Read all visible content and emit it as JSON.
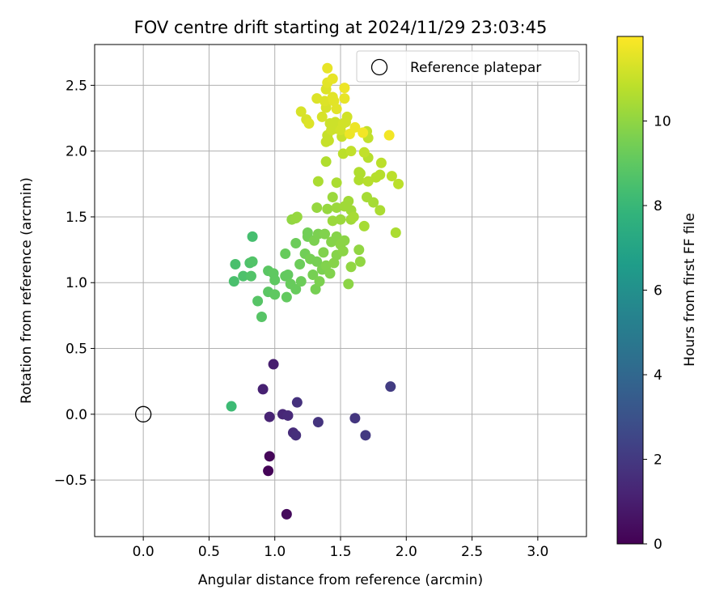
{
  "chart_data": {
    "type": "scatter",
    "title": "FOV centre drift starting at 2024/11/29 23:03:45",
    "xlabel": "Angular distance from reference (arcmin)",
    "ylabel": "Rotation from reference (arcmin)",
    "xlim": [
      -0.37,
      3.37
    ],
    "ylim": [
      -0.93,
      2.81
    ],
    "xticks": [
      "0.0",
      "0.5",
      "1.0",
      "1.5",
      "2.0",
      "2.5",
      "3.0"
    ],
    "xtick_values": [
      0.0,
      0.5,
      1.0,
      1.5,
      2.0,
      2.5,
      3.0
    ],
    "yticks": [
      "−0.5",
      "0.0",
      "0.5",
      "1.0",
      "1.5",
      "2.0",
      "2.5"
    ],
    "ytick_values": [
      -0.5,
      0.0,
      0.5,
      1.0,
      1.5,
      2.0,
      2.5
    ],
    "grid": true,
    "legend": {
      "placement": "top-right",
      "entry": "Reference platepar"
    },
    "reference_point": {
      "x": 0.0,
      "y": 0.0
    },
    "colorbar": {
      "label": "Hours from first FF file",
      "range": [
        0,
        12
      ],
      "ticks": [
        "0",
        "2",
        "4",
        "6",
        "8",
        "10"
      ],
      "tick_values": [
        0,
        2,
        4,
        6,
        8,
        10
      ],
      "colormap": "viridis"
    },
    "points": [
      {
        "x": 0.95,
        "y": -0.43,
        "h": 0.1
      },
      {
        "x": 0.96,
        "y": -0.32,
        "h": 0.2
      },
      {
        "x": 1.09,
        "y": -0.76,
        "h": 0.3
      },
      {
        "x": 0.99,
        "y": 0.38,
        "h": 1.0
      },
      {
        "x": 0.91,
        "y": 0.19,
        "h": 1.1
      },
      {
        "x": 0.96,
        "y": -0.02,
        "h": 1.2
      },
      {
        "x": 1.06,
        "y": 0.0,
        "h": 1.3
      },
      {
        "x": 1.1,
        "y": -0.01,
        "h": 1.4
      },
      {
        "x": 1.14,
        "y": -0.14,
        "h": 1.5
      },
      {
        "x": 1.16,
        "y": -0.16,
        "h": 1.6
      },
      {
        "x": 1.17,
        "y": 0.09,
        "h": 1.7
      },
      {
        "x": 1.33,
        "y": -0.06,
        "h": 1.8
      },
      {
        "x": 1.61,
        "y": -0.03,
        "h": 1.9
      },
      {
        "x": 1.69,
        "y": -0.16,
        "h": 2.0
      },
      {
        "x": 1.88,
        "y": 0.21,
        "h": 2.1
      },
      {
        "x": 0.67,
        "y": 0.06,
        "h": 8.2
      },
      {
        "x": 0.83,
        "y": 1.35,
        "h": 8.4
      },
      {
        "x": 0.7,
        "y": 1.14,
        "h": 8.5
      },
      {
        "x": 0.69,
        "y": 1.01,
        "h": 8.5
      },
      {
        "x": 0.76,
        "y": 1.05,
        "h": 8.6
      },
      {
        "x": 0.81,
        "y": 1.15,
        "h": 8.6
      },
      {
        "x": 0.83,
        "y": 1.16,
        "h": 8.7
      },
      {
        "x": 0.82,
        "y": 1.05,
        "h": 8.7
      },
      {
        "x": 0.87,
        "y": 0.86,
        "h": 8.8
      },
      {
        "x": 0.9,
        "y": 0.74,
        "h": 8.8
      },
      {
        "x": 0.95,
        "y": 0.93,
        "h": 8.9
      },
      {
        "x": 0.95,
        "y": 1.09,
        "h": 8.9
      },
      {
        "x": 0.99,
        "y": 1.07,
        "h": 9.0
      },
      {
        "x": 1.0,
        "y": 1.02,
        "h": 9.0
      },
      {
        "x": 1.0,
        "y": 0.91,
        "h": 9.0
      },
      {
        "x": 1.08,
        "y": 1.05,
        "h": 9.1
      },
      {
        "x": 1.1,
        "y": 1.06,
        "h": 9.1
      },
      {
        "x": 1.09,
        "y": 0.89,
        "h": 9.1
      },
      {
        "x": 1.12,
        "y": 0.99,
        "h": 9.2
      },
      {
        "x": 1.16,
        "y": 0.95,
        "h": 9.2
      },
      {
        "x": 1.08,
        "y": 1.22,
        "h": 9.2
      },
      {
        "x": 1.16,
        "y": 1.3,
        "h": 9.3
      },
      {
        "x": 1.19,
        "y": 1.14,
        "h": 9.3
      },
      {
        "x": 1.2,
        "y": 1.01,
        "h": 9.3
      },
      {
        "x": 1.23,
        "y": 1.22,
        "h": 9.4
      },
      {
        "x": 1.25,
        "y": 1.35,
        "h": 9.4
      },
      {
        "x": 1.25,
        "y": 1.38,
        "h": 9.4
      },
      {
        "x": 1.27,
        "y": 1.18,
        "h": 9.5
      },
      {
        "x": 1.29,
        "y": 1.06,
        "h": 9.5
      },
      {
        "x": 1.31,
        "y": 0.95,
        "h": 9.5
      },
      {
        "x": 1.32,
        "y": 1.16,
        "h": 9.5
      },
      {
        "x": 1.3,
        "y": 1.32,
        "h": 9.6
      },
      {
        "x": 1.33,
        "y": 1.37,
        "h": 9.6
      },
      {
        "x": 1.34,
        "y": 1.01,
        "h": 9.6
      },
      {
        "x": 1.36,
        "y": 1.1,
        "h": 9.6
      },
      {
        "x": 1.37,
        "y": 1.23,
        "h": 9.7
      },
      {
        "x": 1.38,
        "y": 1.37,
        "h": 9.7
      },
      {
        "x": 1.39,
        "y": 1.13,
        "h": 9.7
      },
      {
        "x": 1.42,
        "y": 1.07,
        "h": 9.7
      },
      {
        "x": 1.43,
        "y": 1.31,
        "h": 9.8
      },
      {
        "x": 1.45,
        "y": 1.15,
        "h": 9.8
      },
      {
        "x": 1.47,
        "y": 1.21,
        "h": 9.8
      },
      {
        "x": 1.47,
        "y": 1.35,
        "h": 9.8
      },
      {
        "x": 1.5,
        "y": 1.29,
        "h": 9.9
      },
      {
        "x": 1.52,
        "y": 1.24,
        "h": 9.9
      },
      {
        "x": 1.53,
        "y": 1.32,
        "h": 9.9
      },
      {
        "x": 1.56,
        "y": 0.99,
        "h": 9.9
      },
      {
        "x": 1.58,
        "y": 1.12,
        "h": 10.0
      },
      {
        "x": 1.65,
        "y": 1.16,
        "h": 10.0
      },
      {
        "x": 1.64,
        "y": 1.25,
        "h": 10.0
      },
      {
        "x": 1.13,
        "y": 1.48,
        "h": 10.0
      },
      {
        "x": 1.16,
        "y": 1.49,
        "h": 10.1
      },
      {
        "x": 1.17,
        "y": 1.5,
        "h": 10.1
      },
      {
        "x": 1.32,
        "y": 1.57,
        "h": 10.1
      },
      {
        "x": 1.4,
        "y": 1.56,
        "h": 10.1
      },
      {
        "x": 1.44,
        "y": 1.47,
        "h": 10.2
      },
      {
        "x": 1.47,
        "y": 1.57,
        "h": 10.2
      },
      {
        "x": 1.44,
        "y": 1.65,
        "h": 10.2
      },
      {
        "x": 1.5,
        "y": 1.48,
        "h": 10.2
      },
      {
        "x": 1.53,
        "y": 1.58,
        "h": 10.3
      },
      {
        "x": 1.56,
        "y": 1.62,
        "h": 10.3
      },
      {
        "x": 1.58,
        "y": 1.48,
        "h": 10.3
      },
      {
        "x": 1.58,
        "y": 1.55,
        "h": 10.3
      },
      {
        "x": 1.6,
        "y": 1.5,
        "h": 10.4
      },
      {
        "x": 1.68,
        "y": 1.43,
        "h": 10.4
      },
      {
        "x": 1.7,
        "y": 1.65,
        "h": 10.4
      },
      {
        "x": 1.75,
        "y": 1.61,
        "h": 10.4
      },
      {
        "x": 1.8,
        "y": 1.55,
        "h": 10.5
      },
      {
        "x": 1.92,
        "y": 1.38,
        "h": 10.5
      },
      {
        "x": 1.33,
        "y": 1.77,
        "h": 10.5
      },
      {
        "x": 1.47,
        "y": 1.76,
        "h": 10.5
      },
      {
        "x": 1.39,
        "y": 1.92,
        "h": 10.6
      },
      {
        "x": 1.64,
        "y": 1.78,
        "h": 10.6
      },
      {
        "x": 1.64,
        "y": 1.84,
        "h": 10.6
      },
      {
        "x": 1.65,
        "y": 1.83,
        "h": 10.6
      },
      {
        "x": 1.71,
        "y": 1.77,
        "h": 10.7
      },
      {
        "x": 1.71,
        "y": 1.95,
        "h": 10.7
      },
      {
        "x": 1.77,
        "y": 1.8,
        "h": 10.7
      },
      {
        "x": 1.8,
        "y": 1.82,
        "h": 10.7
      },
      {
        "x": 1.81,
        "y": 1.91,
        "h": 10.8
      },
      {
        "x": 1.89,
        "y": 1.81,
        "h": 10.8
      },
      {
        "x": 1.94,
        "y": 1.75,
        "h": 10.8
      },
      {
        "x": 1.52,
        "y": 1.98,
        "h": 10.8
      },
      {
        "x": 1.58,
        "y": 2.0,
        "h": 10.9
      },
      {
        "x": 1.68,
        "y": 1.99,
        "h": 10.9
      },
      {
        "x": 1.7,
        "y": 2.15,
        "h": 10.9
      },
      {
        "x": 1.71,
        "y": 2.1,
        "h": 10.9
      },
      {
        "x": 1.51,
        "y": 2.11,
        "h": 11.0
      },
      {
        "x": 1.4,
        "y": 2.12,
        "h": 11.0
      },
      {
        "x": 1.41,
        "y": 2.08,
        "h": 11.0
      },
      {
        "x": 1.39,
        "y": 2.07,
        "h": 11.0
      },
      {
        "x": 1.42,
        "y": 2.21,
        "h": 11.1
      },
      {
        "x": 1.43,
        "y": 2.16,
        "h": 11.1
      },
      {
        "x": 1.47,
        "y": 2.17,
        "h": 11.1
      },
      {
        "x": 1.46,
        "y": 2.22,
        "h": 11.1
      },
      {
        "x": 1.5,
        "y": 2.16,
        "h": 11.2
      },
      {
        "x": 1.52,
        "y": 2.21,
        "h": 11.2
      },
      {
        "x": 1.55,
        "y": 2.26,
        "h": 11.2
      },
      {
        "x": 1.54,
        "y": 2.22,
        "h": 11.2
      },
      {
        "x": 1.36,
        "y": 2.26,
        "h": 11.3
      },
      {
        "x": 1.39,
        "y": 2.33,
        "h": 11.3
      },
      {
        "x": 1.2,
        "y": 2.3,
        "h": 11.3
      },
      {
        "x": 1.24,
        "y": 2.24,
        "h": 11.3
      },
      {
        "x": 1.26,
        "y": 2.21,
        "h": 11.4
      },
      {
        "x": 1.32,
        "y": 2.4,
        "h": 11.4
      },
      {
        "x": 1.38,
        "y": 2.38,
        "h": 11.4
      },
      {
        "x": 1.39,
        "y": 2.47,
        "h": 11.4
      },
      {
        "x": 1.4,
        "y": 2.52,
        "h": 11.5
      },
      {
        "x": 1.44,
        "y": 2.41,
        "h": 11.5
      },
      {
        "x": 1.45,
        "y": 2.38,
        "h": 11.5
      },
      {
        "x": 1.47,
        "y": 2.32,
        "h": 11.5
      },
      {
        "x": 1.44,
        "y": 2.55,
        "h": 11.6
      },
      {
        "x": 1.4,
        "y": 2.63,
        "h": 11.6
      },
      {
        "x": 1.53,
        "y": 2.4,
        "h": 11.6
      },
      {
        "x": 1.53,
        "y": 2.48,
        "h": 11.7
      },
      {
        "x": 1.57,
        "y": 2.13,
        "h": 11.7
      },
      {
        "x": 1.61,
        "y": 2.18,
        "h": 11.7
      },
      {
        "x": 1.67,
        "y": 2.14,
        "h": 11.8
      },
      {
        "x": 1.87,
        "y": 2.12,
        "h": 11.8
      }
    ]
  }
}
